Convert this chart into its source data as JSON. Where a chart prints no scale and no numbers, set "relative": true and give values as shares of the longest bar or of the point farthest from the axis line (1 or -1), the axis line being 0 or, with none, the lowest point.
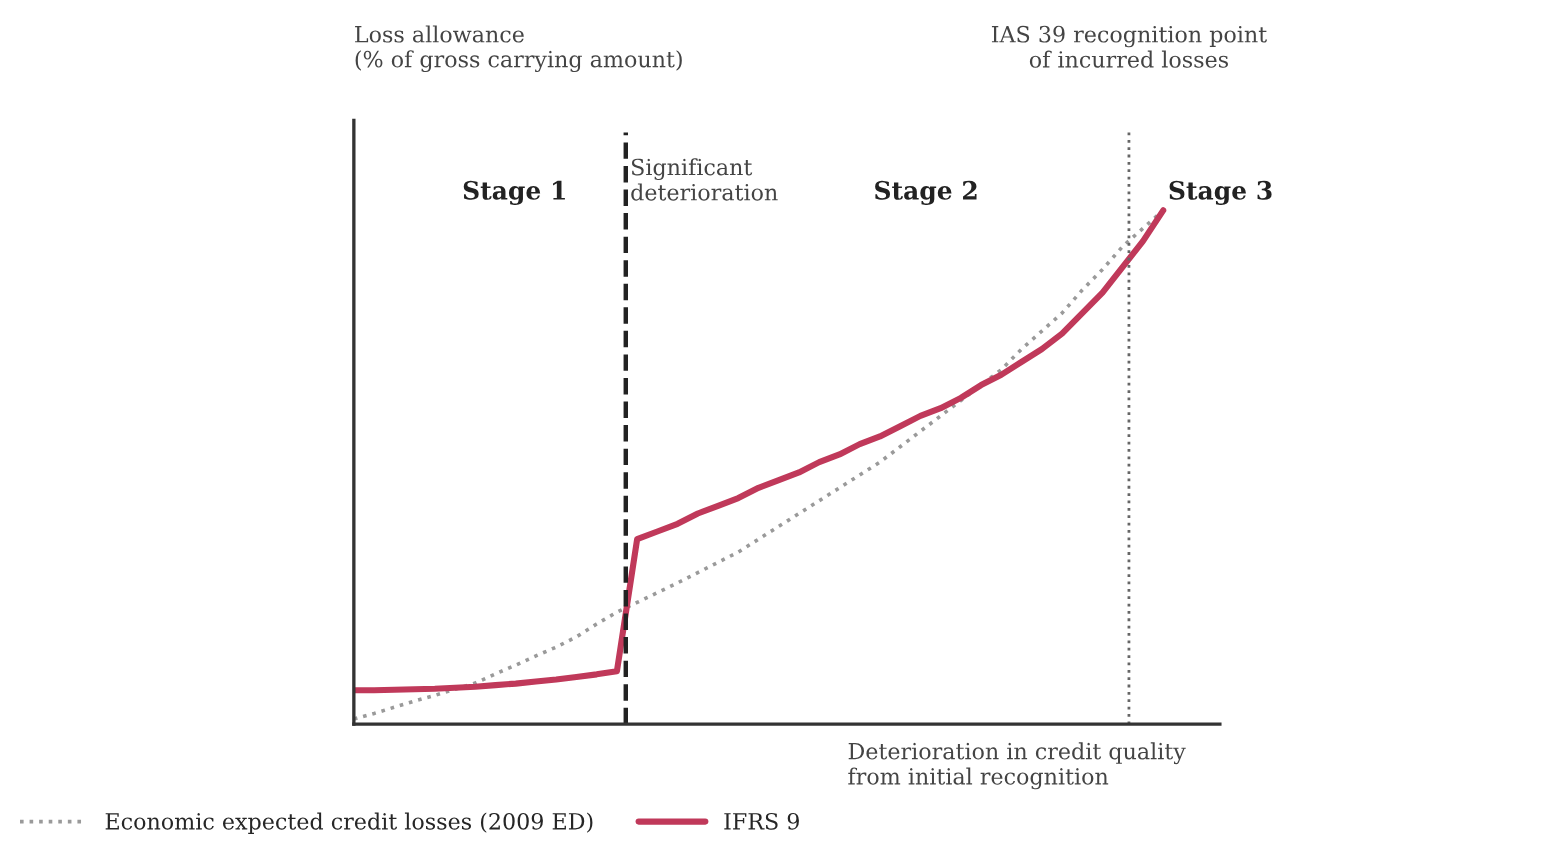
{
  "chart_data": {
    "type": "line",
    "relative": true,
    "xlabel": "Deterioration in credit quality\nfrom initial recognition",
    "annotations": [
      "Loss allowance\n(% of gross carrying amount)",
      "Stage 1",
      "Significant\ndeterioration",
      "Stage 2",
      "IAS 39 recognition point\nof incurred losses",
      "Stage 3"
    ],
    "categories": [
      null,
      null,
      null,
      null,
      null,
      null,
      null,
      null,
      null,
      null,
      null,
      null,
      null,
      null,
      null,
      null,
      null,
      null,
      null,
      null,
      null,
      null,
      null,
      null,
      null,
      null,
      null,
      null,
      null,
      null,
      null,
      null,
      null,
      null,
      null,
      null,
      null,
      null,
      null,
      null,
      null
    ],
    "series": [
      {
        "name": "Economic expected credit losses (2009 ED)",
        "color": "#9a9a9a",
        "line_style": "dotted",
        "values": [
          0.01,
          0.021,
          0.033,
          0.045,
          0.056,
          0.068,
          0.08,
          0.098,
          0.115,
          0.133,
          0.15,
          0.17,
          0.195,
          0.218,
          0.237,
          0.256,
          0.275,
          0.295,
          0.315,
          0.335,
          0.36,
          0.385,
          0.41,
          0.435,
          0.46,
          0.485,
          0.51,
          0.54,
          0.57,
          0.6,
          0.63,
          0.66,
          0.69,
          0.73,
          0.765,
          0.8,
          0.845,
          0.885,
          0.93,
          0.965,
          1.0
        ]
      },
      {
        "name": "IFRS 9",
        "color": "#c0395a",
        "line_style": "solid",
        "values": [
          0.066,
          0.066,
          0.067,
          0.068,
          0.069,
          0.071,
          0.073,
          0.076,
          0.079,
          0.083,
          0.087,
          0.092,
          0.097,
          0.103,
          0.36,
          0.375,
          0.39,
          0.41,
          0.425,
          0.44,
          0.46,
          0.475,
          0.49,
          0.51,
          0.525,
          0.545,
          0.56,
          0.58,
          0.6,
          0.615,
          0.635,
          0.66,
          0.68,
          0.705,
          0.73,
          0.76,
          0.8,
          0.84,
          0.89,
          0.94,
          1.0
        ]
      }
    ],
    "legend": "bottom"
  }
}
